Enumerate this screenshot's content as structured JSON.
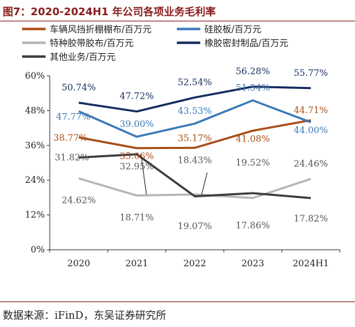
{
  "figure": {
    "title": "图7：2020-2024H1 年公司各项业务毛利率",
    "source": "数据来源：iFinD，东吴证券研究所"
  },
  "chart_data": {
    "type": "line",
    "categories": [
      "2020",
      "2021",
      "2022",
      "2023",
      "2024H1"
    ],
    "ylim": [
      0,
      60
    ],
    "yticks": [
      "0%",
      "12%",
      "24%",
      "36%",
      "48%",
      "60%"
    ],
    "grid": false,
    "legend_position": "top",
    "series": [
      {
        "name": "车辆风挡折棚棚布/百万元",
        "color": "#a84c16",
        "values": [
          38.77,
          35.06,
          35.17,
          41.08,
          44.71
        ],
        "labels": [
          "38.77%",
          "35.06%",
          "35.17%",
          "41.08%",
          "44.71%"
        ]
      },
      {
        "name": "硅胶板/百万元",
        "color": "#3a78b8",
        "values": [
          47.77,
          39.0,
          43.53,
          51.54,
          44.0
        ],
        "labels": [
          "47.77%",
          "39.00%",
          "43.53%",
          "51.54%",
          "44.00%"
        ]
      },
      {
        "name": "特种胶带胶布/百万元",
        "color": "#b4b4b4",
        "values": [
          24.62,
          18.71,
          19.07,
          17.86,
          24.46
        ],
        "labels": [
          "24.62%",
          "18.71%",
          "19.07%",
          "17.86%",
          "24.46%"
        ]
      },
      {
        "name": "橡胶密封制品/百万元",
        "color": "#122a5c",
        "values": [
          50.74,
          47.72,
          52.54,
          56.28,
          55.77
        ],
        "labels": [
          "50.74%",
          "47.72%",
          "52.54%",
          "56.28%",
          "55.77%"
        ]
      },
      {
        "name": "其他业务/百万元",
        "color": "#3a3a3a",
        "values": [
          31.82,
          32.95,
          18.43,
          19.52,
          17.82
        ],
        "labels": [
          "31.82%",
          "32.95%",
          "18.43%",
          "19.52%",
          "17.82%"
        ]
      }
    ]
  }
}
